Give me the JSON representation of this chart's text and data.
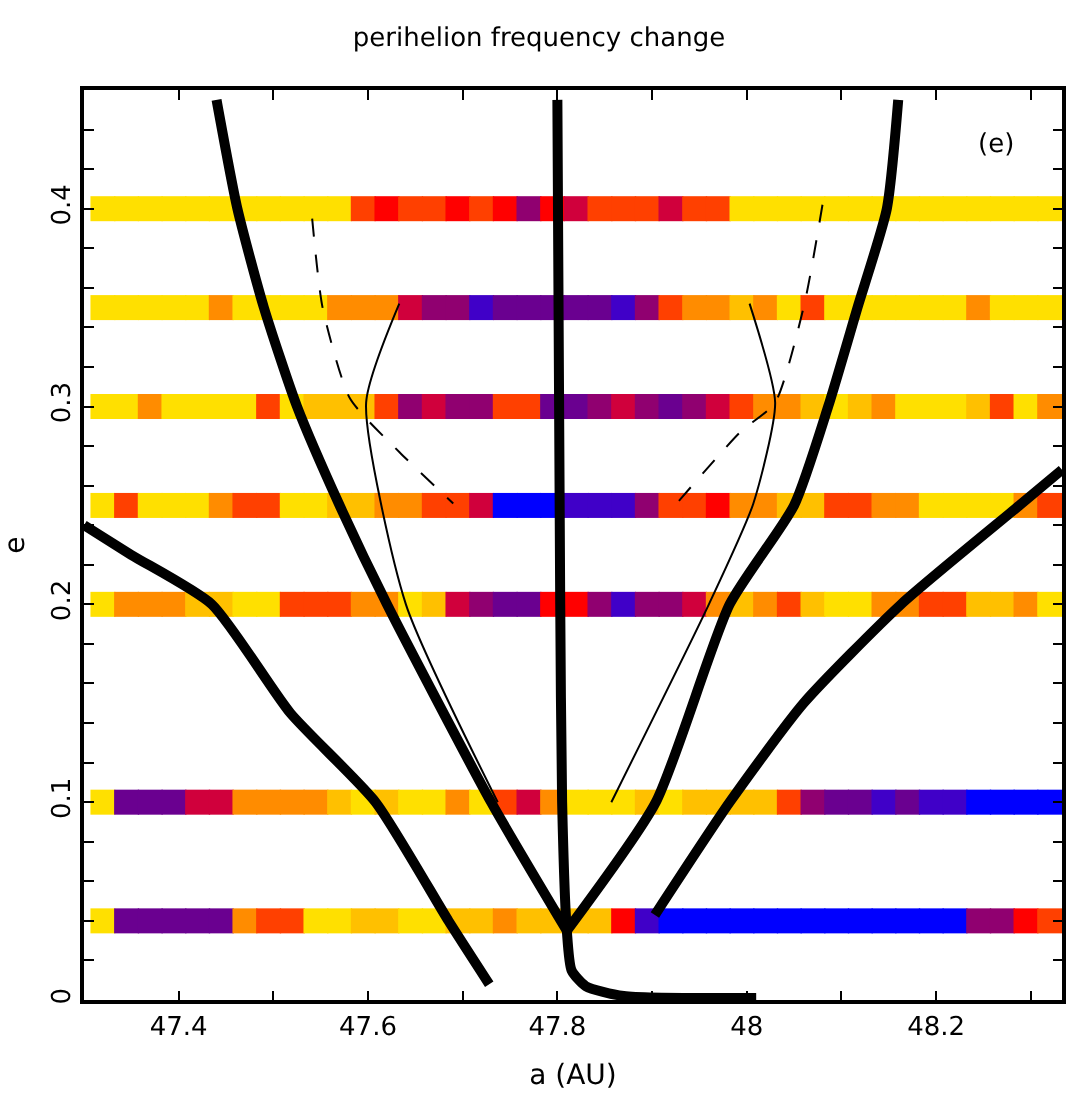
{
  "chart_data": {
    "type": "scatter",
    "title": "perihelion frequency change",
    "xlabel": "a (AU)",
    "ylabel": "e",
    "annotations": [
      "(e)"
    ],
    "x": [
      47.32,
      47.345,
      47.37,
      47.395,
      47.42,
      47.445,
      47.47,
      47.495,
      47.52,
      47.545,
      47.57,
      47.595,
      47.62,
      47.645,
      47.67,
      47.695,
      47.72,
      47.745,
      47.77,
      47.795,
      47.82,
      47.845,
      47.87,
      47.895,
      47.92,
      47.945,
      47.97,
      47.995,
      48.02,
      48.045,
      48.07,
      48.095,
      48.12,
      48.145,
      48.17,
      48.195,
      48.22,
      48.245,
      48.27,
      48.295,
      48.32
    ],
    "marker": "square",
    "xlim": [
      47.3,
      48.333
    ],
    "ylim": [
      0,
      0.46
    ],
    "xticks": [
      47.4,
      {
        "value": 47.5,
        "label": null
      },
      47.6,
      {
        "value": 47.7,
        "label": null
      },
      47.8,
      {
        "value": 47.9,
        "label": null
      },
      48,
      {
        "value": 48.1,
        "label": null
      },
      48.2,
      {
        "value": 48.3,
        "label": null
      }
    ],
    "yticks": [
      0,
      {
        "value": 0.02,
        "label": null
      },
      {
        "value": 0.04,
        "label": null
      },
      {
        "value": 0.06,
        "label": null
      },
      {
        "value": 0.08,
        "label": null
      },
      0.1,
      {
        "value": 0.12,
        "label": null
      },
      {
        "value": 0.14,
        "label": null
      },
      {
        "value": 0.16,
        "label": null
      },
      {
        "value": 0.18,
        "label": null
      },
      0.2,
      {
        "value": 0.22,
        "label": null
      },
      {
        "value": 0.24,
        "label": null
      },
      {
        "value": 0.26,
        "label": null
      },
      {
        "value": 0.28,
        "label": null
      },
      0.3,
      {
        "value": 0.32,
        "label": null
      },
      {
        "value": 0.34,
        "label": null
      },
      {
        "value": 0.36,
        "label": null
      },
      {
        "value": 0.38,
        "label": null
      },
      0.4,
      {
        "value": 0.42,
        "label": null
      },
      {
        "value": 0.44,
        "label": null
      }
    ],
    "series": [
      {
        "values": [
          0.04,
          0.04,
          0.04,
          0.04,
          0.04,
          0.04,
          0.04,
          0.04,
          0.04,
          0.04,
          0.04,
          0.04,
          0.04,
          0.04,
          0.04,
          0.04,
          0.04,
          0.04,
          0.04,
          0.04,
          0.04,
          0.04,
          0.04,
          0.04,
          0.04,
          0.04,
          0.04,
          0.04,
          0.04,
          0.04,
          0.04,
          0.04,
          0.04,
          0.04,
          0.04,
          0.04,
          0.04,
          0.04,
          0.04,
          0.04,
          0.04
        ],
        "colors": [
          "#ffe000",
          "#6a0090",
          "#6a0090",
          "#6a0090",
          "#6a0090",
          "#6a0090",
          "#ff8c00",
          "#ff4000",
          "#ff4000",
          "#ffe000",
          "#ffe000",
          "#ffc000",
          "#ffc000",
          "#ffe000",
          "#ffe000",
          "#ffc000",
          "#ffc000",
          "#ff8c00",
          "#ffc000",
          "#ffc000",
          "#ffc000",
          "#ffc000",
          "#ff0000",
          "#4000c8",
          "#0000ff",
          "#0000ff",
          "#0000ff",
          "#0000ff",
          "#0000ff",
          "#0000ff",
          "#0000ff",
          "#0000ff",
          "#0000ff",
          "#0000ff",
          "#0000ff",
          "#0000ff",
          "#0000ff",
          "#900070",
          "#900070",
          "#ff0000",
          "#ff4000"
        ]
      },
      {
        "values": [
          0.1,
          0.1,
          0.1,
          0.1,
          0.1,
          0.1,
          0.1,
          0.1,
          0.1,
          0.1,
          0.1,
          0.1,
          0.1,
          0.1,
          0.1,
          0.1,
          0.1,
          0.1,
          0.1,
          0.1,
          0.1,
          0.1,
          0.1,
          0.1,
          0.1,
          0.1,
          0.1,
          0.1,
          0.1,
          0.1,
          0.1,
          0.1,
          0.1,
          0.1,
          0.1,
          0.1,
          0.1,
          0.1,
          0.1,
          0.1,
          0.1
        ],
        "colors": [
          "#ffe000",
          "#6a0090",
          "#6a0090",
          "#6a0090",
          "#d0003c",
          "#d0003c",
          "#ff8c00",
          "#ff8c00",
          "#ff8c00",
          "#ff8c00",
          "#ffc000",
          "#ffe000",
          "#ffc000",
          "#ffe000",
          "#ffe000",
          "#ff8c00",
          "#ffe000",
          "#ff4000",
          "#d0003c",
          "#ff8c00",
          "#ffe000",
          "#ffe000",
          "#ffe000",
          "#ffc000",
          "#ffe000",
          "#ffc000",
          "#ffc000",
          "#ffc000",
          "#ffc000",
          "#ff4000",
          "#900070",
          "#6a0090",
          "#6a0090",
          "#4000c8",
          "#6a0090",
          "#4000c8",
          "#4000c8",
          "#0000ff",
          "#0000ff",
          "#0000ff",
          "#0000ff"
        ]
      },
      {
        "values": [
          0.2,
          0.2,
          0.2,
          0.2,
          0.2,
          0.2,
          0.2,
          0.2,
          0.2,
          0.2,
          0.2,
          0.2,
          0.2,
          0.2,
          0.2,
          0.2,
          0.2,
          0.2,
          0.2,
          0.2,
          0.2,
          0.2,
          0.2,
          0.2,
          0.2,
          0.2,
          0.2,
          0.2,
          0.2,
          0.2,
          0.2,
          0.2,
          0.2,
          0.2,
          0.2,
          0.2,
          0.2,
          0.2,
          0.2,
          0.2,
          0.2
        ],
        "colors": [
          "#ffe000",
          "#ff8c00",
          "#ff8c00",
          "#ff8c00",
          "#ffc000",
          "#ffc000",
          "#ffe000",
          "#ffe000",
          "#ff4000",
          "#ff4000",
          "#ff4000",
          "#ff8c00",
          "#ff8c00",
          "#ffe000",
          "#ffc000",
          "#d0003c",
          "#900070",
          "#6a0090",
          "#6a0090",
          "#ff0000",
          "#ff0000",
          "#900070",
          "#4000c8",
          "#900070",
          "#900070",
          "#d0003c",
          "#ff8c00",
          "#ffc000",
          "#ff8c00",
          "#ff4000",
          "#ffc000",
          "#ffe000",
          "#ffe000",
          "#ff8c00",
          "#ff8c00",
          "#ff4000",
          "#ff4000",
          "#ffc000",
          "#ffc000",
          "#ff8c00",
          "#ffe000"
        ]
      },
      {
        "values": [
          0.25,
          0.25,
          0.25,
          0.25,
          0.25,
          0.25,
          0.25,
          0.25,
          0.25,
          0.25,
          0.25,
          0.25,
          0.25,
          0.25,
          0.25,
          0.25,
          0.25,
          0.25,
          0.25,
          0.25,
          0.25,
          0.25,
          0.25,
          0.25,
          0.25,
          0.25,
          0.25,
          0.25,
          0.25,
          0.25,
          0.25,
          0.25,
          0.25,
          0.25,
          0.25,
          0.25,
          0.25,
          0.25,
          0.25,
          0.25,
          0.25
        ],
        "colors": [
          "#ffe000",
          "#ff4000",
          "#ffe000",
          "#ffe000",
          "#ffe000",
          "#ff8c00",
          "#ff4000",
          "#ff4000",
          "#ffe000",
          "#ffe000",
          "#ffc000",
          "#ffc000",
          "#ff8c00",
          "#ff8c00",
          "#ff4000",
          "#ff4000",
          "#d0003c",
          "#0000ff",
          "#0000ff",
          "#0000ff",
          "#4000c8",
          "#4000c8",
          "#4000c8",
          "#900070",
          "#ff4000",
          "#ff4000",
          "#ff0000",
          "#ff8c00",
          "#ff8c00",
          "#ffc000",
          "#ffc000",
          "#ff4000",
          "#ff4000",
          "#ff8c00",
          "#ff8c00",
          "#ffe000",
          "#ffe000",
          "#ffe000",
          "#ffe000",
          "#ff8c00",
          "#ff4000"
        ]
      },
      {
        "values": [
          0.3,
          0.3,
          0.3,
          0.3,
          0.3,
          0.3,
          0.3,
          0.3,
          0.3,
          0.3,
          0.3,
          0.3,
          0.3,
          0.3,
          0.3,
          0.3,
          0.3,
          0.3,
          0.3,
          0.3,
          0.3,
          0.3,
          0.3,
          0.3,
          0.3,
          0.3,
          0.3,
          0.3,
          0.3,
          0.3,
          0.3,
          0.3,
          0.3,
          0.3,
          0.3,
          0.3,
          0.3,
          0.3,
          0.3,
          0.3,
          0.3
        ],
        "colors": [
          "#ffe000",
          "#ffe000",
          "#ff8c00",
          "#ffe000",
          "#ffe000",
          "#ffe000",
          "#ffe000",
          "#ff4000",
          "#ffe000",
          "#ffc000",
          "#ffc000",
          "#ffc000",
          "#ff4000",
          "#900070",
          "#d0003c",
          "#900070",
          "#900070",
          "#ff4000",
          "#ff4000",
          "#6a0090",
          "#6a0090",
          "#900070",
          "#d0003c",
          "#900070",
          "#6a0090",
          "#900070",
          "#d0003c",
          "#ff4000",
          "#ff8c00",
          "#ff8c00",
          "#ffc000",
          "#ffe000",
          "#ffc000",
          "#ff8c00",
          "#ffe000",
          "#ffe000",
          "#ffe000",
          "#ffc000",
          "#ff4000",
          "#ffe000",
          "#ff8c00"
        ]
      },
      {
        "values": [
          0.35,
          0.35,
          0.35,
          0.35,
          0.35,
          0.35,
          0.35,
          0.35,
          0.35,
          0.35,
          0.35,
          0.35,
          0.35,
          0.35,
          0.35,
          0.35,
          0.35,
          0.35,
          0.35,
          0.35,
          0.35,
          0.35,
          0.35,
          0.35,
          0.35,
          0.35,
          0.35,
          0.35,
          0.35,
          0.35,
          0.35,
          0.35,
          0.35,
          0.35,
          0.35,
          0.35,
          0.35,
          0.35,
          0.35,
          0.35,
          0.35
        ],
        "colors": [
          "#ffe000",
          "#ffe000",
          "#ffe000",
          "#ffe000",
          "#ffe000",
          "#ff8c00",
          "#ffe000",
          "#ffe000",
          "#ffe000",
          "#ffe000",
          "#ff8c00",
          "#ff8c00",
          "#ff8c00",
          "#d0003c",
          "#900070",
          "#900070",
          "#4000c8",
          "#6a0090",
          "#6a0090",
          "#6a0090",
          "#6a0090",
          "#6a0090",
          "#4000c8",
          "#900070",
          "#ff4000",
          "#ff8c00",
          "#ff8c00",
          "#ffc000",
          "#ff8c00",
          "#ffe000",
          "#ff4000",
          "#ffe000",
          "#ffe000",
          "#ffe000",
          "#ffe000",
          "#ffe000",
          "#ffe000",
          "#ff8c00",
          "#ffe000",
          "#ffe000",
          "#ffe000"
        ]
      },
      {
        "values": [
          0.4,
          0.4,
          0.4,
          0.4,
          0.4,
          0.4,
          0.4,
          0.4,
          0.4,
          0.4,
          0.4,
          0.4,
          0.4,
          0.4,
          0.4,
          0.4,
          0.4,
          0.4,
          0.4,
          0.4,
          0.4,
          0.4,
          0.4,
          0.4,
          0.4,
          0.4,
          0.4,
          0.4,
          0.4,
          0.4,
          0.4,
          0.4,
          0.4,
          0.4,
          0.4,
          0.4,
          0.4,
          0.4,
          0.4,
          0.4,
          0.4
        ],
        "colors": [
          "#ffe000",
          "#ffe000",
          "#ffe000",
          "#ffe000",
          "#ffe000",
          "#ffe000",
          "#ffe000",
          "#ffe000",
          "#ffe000",
          "#ffe000",
          "#ffe000",
          "#ff4000",
          "#ff0000",
          "#ff4000",
          "#ff4000",
          "#ff0000",
          "#ff4000",
          "#ff0000",
          "#900070",
          "#ff0000",
          "#d0003c",
          "#ff4000",
          "#ff4000",
          "#ff4000",
          "#d0003c",
          "#ff4000",
          "#ff4000",
          "#ffe000",
          "#ffe000",
          "#ffe000",
          "#ffe000",
          "#ffe000",
          "#ffe000",
          "#ffe000",
          "#ffe000",
          "#ffe000",
          "#ffe000",
          "#ffe000",
          "#ffe000",
          "#ffe000",
          "#ffe000"
        ]
      },
      {
        "type": "line",
        "color": "#000000",
        "line_style": "solid",
        "marker": "none",
        "x": [
          47.44,
          47.462,
          47.49,
          47.525,
          47.57,
          47.62,
          47.73,
          47.81
        ],
        "values": [
          0.455,
          0.4,
          0.35,
          0.3,
          0.25,
          0.2,
          0.1,
          0.035
        ]
      },
      {
        "type": "line",
        "color": "#000000",
        "line_style": "solid",
        "marker": "none",
        "x": [
          47.81,
          47.904,
          47.982,
          48.05,
          48.086,
          48.117,
          48.148,
          48.16
        ],
        "values": [
          0.035,
          0.1,
          0.2,
          0.25,
          0.3,
          0.35,
          0.4,
          0.455
        ]
      },
      {
        "type": "line",
        "color": "#000000",
        "line_style": "solid",
        "marker": "none",
        "x": [
          47.8,
          47.803,
          47.805,
          47.81,
          47.815,
          47.83,
          47.87,
          48.01
        ],
        "values": [
          0.455,
          0.2,
          0.1,
          0.035,
          0.015,
          0.007,
          0.002,
          0.001
        ]
      },
      {
        "type": "line",
        "color": "#000000",
        "line_style": "solid",
        "marker": "none",
        "x": [
          47.3,
          47.35,
          47.435,
          47.518,
          47.608,
          47.685,
          47.728
        ],
        "values": [
          0.24,
          0.225,
          0.2,
          0.145,
          0.1,
          0.04,
          0.008
        ]
      },
      {
        "type": "line",
        "color": "#000000",
        "line_style": "solid",
        "marker": "none",
        "x": [
          47.903,
          47.982,
          48.06,
          48.163,
          48.288,
          48.333
        ],
        "values": [
          0.043,
          0.1,
          0.15,
          0.2,
          0.25,
          0.268
        ]
      },
      {
        "type": "line",
        "color": "#000000",
        "line_style": "solid",
        "marker": "none",
        "x": [
          47.633,
          47.598,
          47.64,
          47.737
        ],
        "values": [
          0.352,
          0.302,
          0.2,
          0.1
        ]
      },
      {
        "type": "line",
        "color": "#000000",
        "line_style": "solid",
        "marker": "none",
        "x": [
          48.003,
          48.03,
          48.007,
          47.96,
          47.857
        ],
        "values": [
          0.352,
          0.302,
          0.251,
          0.2,
          0.1
        ]
      },
      {
        "type": "line",
        "color": "#000000",
        "line_style": "dashed",
        "marker": "none",
        "x": [
          47.541,
          47.552,
          47.581,
          47.633,
          47.69
        ],
        "values": [
          0.395,
          0.35,
          0.304,
          0.277,
          0.251
        ]
      },
      {
        "type": "line",
        "color": "#000000",
        "line_style": "dashed",
        "marker": "none",
        "x": [
          48.08,
          48.061,
          48.03,
          47.993,
          47.926
        ],
        "values": [
          0.402,
          0.352,
          0.302,
          0.287,
          0.251
        ]
      }
    ]
  }
}
